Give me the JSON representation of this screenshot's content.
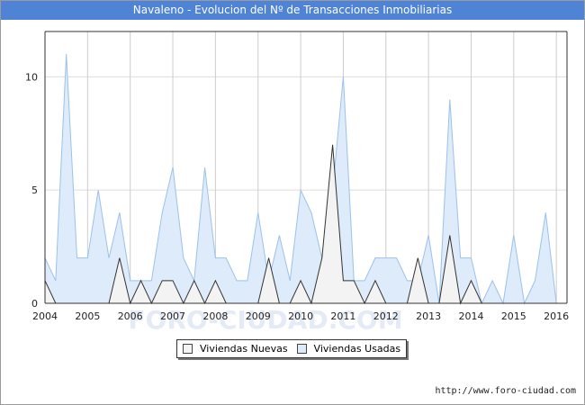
{
  "title": "Navaleno - Evolucion del Nº de Transacciones Inmobiliarias",
  "footer": "http://www.foro-ciudad.com",
  "watermark": "FORO-CIUDAD.COM",
  "colors": {
    "title_bg": "#4f83d6",
    "nuevas_fill": "#f3f3f3",
    "usadas_fill": "#deebfb",
    "usadas_line": "#9cc1ea",
    "nuevas_line": "#333333"
  },
  "chart_data": {
    "type": "area",
    "ylim": [
      0,
      12
    ],
    "xlim": [
      2004,
      2016.25
    ],
    "y_ticks": [
      0,
      5,
      10
    ],
    "x_ticks": [
      2004,
      2005,
      2006,
      2007,
      2008,
      2009,
      2010,
      2011,
      2012,
      2013,
      2014,
      2015,
      2016
    ],
    "x": [
      2004.0,
      2004.25,
      2004.5,
      2004.75,
      2005.0,
      2005.25,
      2005.5,
      2005.75,
      2006.0,
      2006.25,
      2006.5,
      2006.75,
      2007.0,
      2007.25,
      2007.5,
      2007.75,
      2008.0,
      2008.25,
      2008.5,
      2008.75,
      2009.0,
      2009.25,
      2009.5,
      2009.75,
      2010.0,
      2010.25,
      2010.5,
      2010.75,
      2011.0,
      2011.25,
      2011.5,
      2011.75,
      2012.0,
      2012.25,
      2012.5,
      2012.75,
      2013.0,
      2013.25,
      2013.5,
      2013.75,
      2014.0,
      2014.25,
      2014.5,
      2014.75,
      2015.0,
      2015.25,
      2015.5,
      2015.75,
      2016.0,
      2016.25
    ],
    "series": [
      {
        "name": "Viviendas Nuevas",
        "values": [
          1,
          0,
          0,
          0,
          0,
          0,
          0,
          2,
          0,
          1,
          0,
          1,
          1,
          0,
          1,
          0,
          1,
          0,
          0,
          0,
          0,
          2,
          0,
          0,
          1,
          0,
          2,
          7,
          1,
          1,
          0,
          1,
          0,
          0,
          0,
          2,
          0,
          0,
          3,
          0,
          1,
          0,
          0,
          0,
          0,
          0,
          0,
          0,
          0,
          0
        ]
      },
      {
        "name": "Viviendas Usadas",
        "values": [
          2,
          1,
          11,
          2,
          2,
          5,
          2,
          4,
          1,
          1,
          1,
          4,
          6,
          2,
          1,
          6,
          2,
          2,
          1,
          1,
          4,
          1,
          3,
          1,
          5,
          4,
          2,
          5,
          10,
          1,
          1,
          2,
          2,
          2,
          1,
          1,
          3,
          0,
          9,
          2,
          2,
          0,
          1,
          0,
          3,
          0,
          1,
          4,
          0,
          0
        ]
      }
    ]
  }
}
